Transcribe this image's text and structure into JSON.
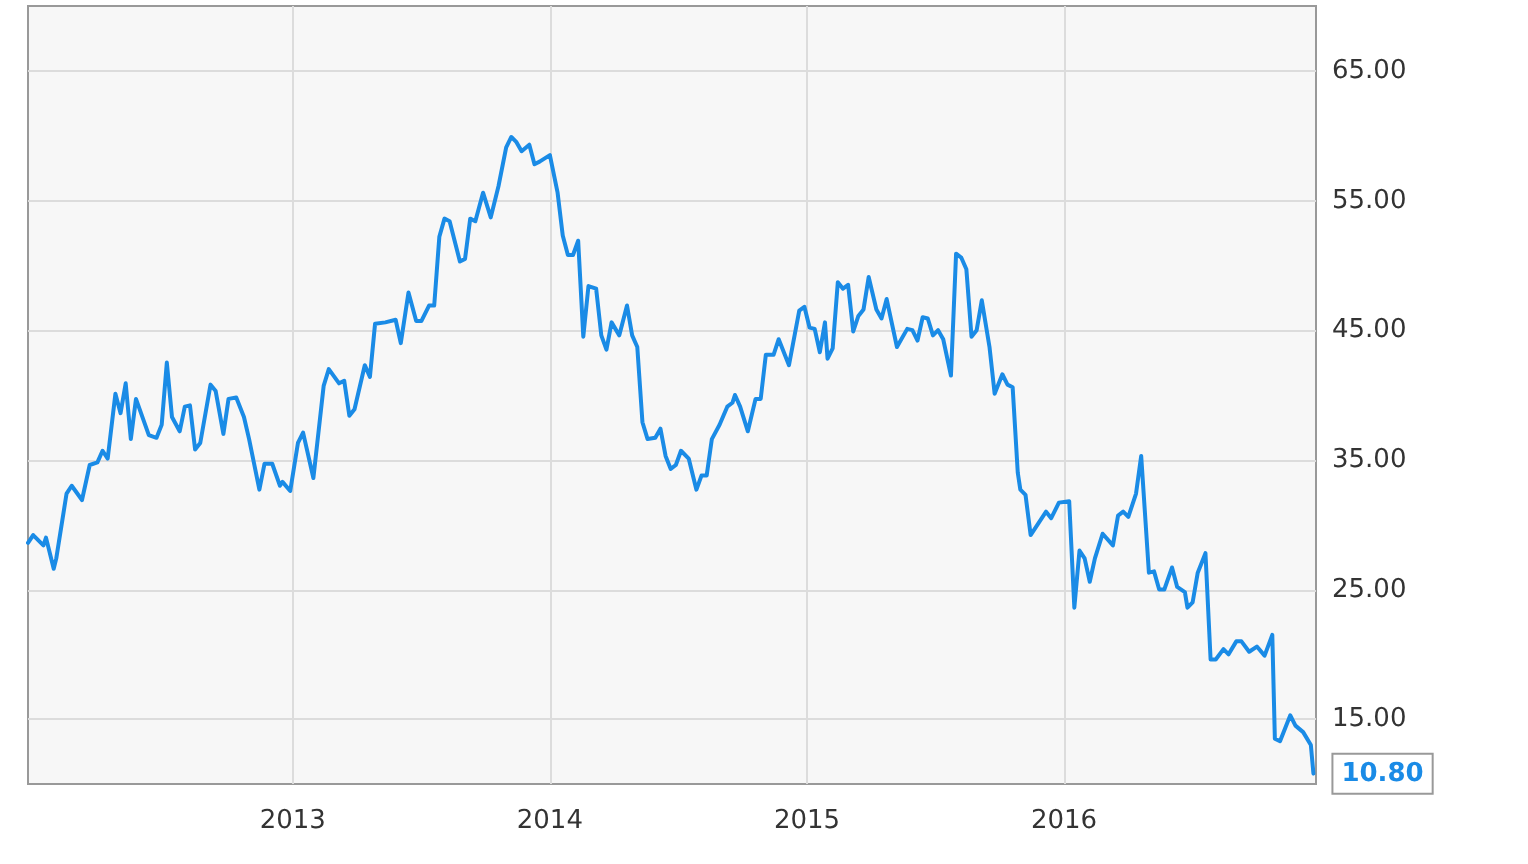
{
  "chart_data": {
    "type": "line",
    "grid": true,
    "marker": "none",
    "line_style": "solid",
    "xlim": [
      2011.97,
      2016.98
    ],
    "xticks": [
      2013,
      2014,
      2015,
      2016
    ],
    "ylim": [
      10,
      70
    ],
    "yticks": [
      {
        "value": 15,
        "label": "15.00"
      },
      {
        "value": 25,
        "label": "25.00"
      },
      {
        "value": 35,
        "label": "35.00"
      },
      {
        "value": 45,
        "label": "45.00"
      },
      {
        "value": 55,
        "label": "55.00"
      },
      {
        "value": 65,
        "label": "65.00"
      }
    ],
    "annotations": [
      {
        "text": "10.80",
        "x": 2016.97,
        "y": 10.8
      }
    ],
    "series": [
      {
        "color": "#1a8be6",
        "x": [
          2011.97,
          2011.99,
          2012.03,
          2012.04,
          2012.07,
          2012.08,
          2012.12,
          2012.14,
          2012.18,
          2012.21,
          2012.24,
          2012.26,
          2012.28,
          2012.31,
          2012.33,
          2012.35,
          2012.37,
          2012.39,
          2012.44,
          2012.47,
          2012.49,
          2012.51,
          2012.53,
          2012.56,
          2012.58,
          2012.6,
          2012.62,
          2012.64,
          2012.68,
          2012.7,
          2012.73,
          2012.75,
          2012.78,
          2012.81,
          2012.83,
          2012.87,
          2012.89,
          2012.92,
          2012.95,
          2012.96,
          2012.99,
          2013.02,
          2013.04,
          2013.08,
          2013.12,
          2013.14,
          2013.18,
          2013.2,
          2013.22,
          2013.24,
          2013.28,
          2013.3,
          2013.32,
          2013.36,
          2013.4,
          2013.42,
          2013.45,
          2013.48,
          2013.5,
          2013.53,
          2013.55,
          2013.57,
          2013.59,
          2013.61,
          2013.65,
          2013.67,
          2013.69,
          2013.71,
          2013.74,
          2013.77,
          2013.8,
          2013.83,
          2013.85,
          2013.87,
          2013.89,
          2013.92,
          2013.94,
          2013.96,
          2014.0,
          2014.03,
          2014.05,
          2014.07,
          2014.09,
          2014.11,
          2014.13,
          2014.15,
          2014.18,
          2014.2,
          2014.22,
          2014.24,
          2014.27,
          2014.3,
          2014.32,
          2014.34,
          2014.36,
          2014.38,
          2014.41,
          2014.43,
          2014.45,
          2014.47,
          2014.49,
          2014.51,
          2014.54,
          2014.57,
          2014.59,
          2014.61,
          2014.63,
          2014.66,
          2014.69,
          2014.71,
          2014.72,
          2014.74,
          2014.77,
          2014.8,
          2014.82,
          2014.84,
          2014.87,
          2014.89,
          2014.93,
          2014.97,
          2014.99,
          2015.01,
          2015.03,
          2015.05,
          2015.07,
          2015.08,
          2015.1,
          2015.12,
          2015.14,
          2015.16,
          2015.18,
          2015.2,
          2015.22,
          2015.24,
          2015.27,
          2015.29,
          2015.31,
          2015.35,
          2015.39,
          2015.41,
          2015.43,
          2015.45,
          2015.47,
          2015.49,
          2015.51,
          2015.53,
          2015.56,
          2015.58,
          2015.6,
          2015.62,
          2015.64,
          2015.66,
          2015.68,
          2015.71,
          2015.73,
          2015.76,
          2015.78,
          2015.8,
          2015.82,
          2015.83,
          2015.85,
          2015.87,
          2015.9,
          2015.93,
          2015.95,
          2015.98,
          2016.02,
          2016.04,
          2016.06,
          2016.08,
          2016.1,
          2016.12,
          2016.15,
          2016.19,
          2016.21,
          2016.23,
          2016.25,
          2016.28,
          2016.3,
          2016.33,
          2016.35,
          2016.37,
          2016.39,
          2016.42,
          2016.44,
          2016.47,
          2016.48,
          2016.5,
          2016.52,
          2016.55,
          2016.57,
          2016.59,
          2016.62,
          2016.64,
          2016.67,
          2016.69,
          2016.72,
          2016.75,
          2016.78,
          2016.81,
          2016.82,
          2016.84,
          2016.88,
          2016.9,
          2016.93,
          2016.96,
          2016.97
        ],
        "values": [
          28.6,
          29.2,
          28.4,
          29.0,
          26.6,
          27.4,
          32.4,
          33.0,
          31.9,
          34.6,
          34.8,
          35.7,
          35.1,
          40.1,
          38.6,
          40.9,
          36.6,
          39.7,
          36.9,
          36.7,
          37.7,
          42.5,
          38.3,
          37.2,
          39.1,
          39.2,
          35.8,
          36.3,
          40.8,
          40.3,
          37.0,
          39.7,
          39.8,
          38.3,
          36.6,
          32.7,
          34.7,
          34.7,
          33.0,
          33.3,
          32.6,
          36.3,
          37.1,
          33.6,
          40.7,
          42.0,
          40.9,
          41.1,
          38.4,
          38.9,
          42.3,
          41.4,
          45.5,
          45.6,
          45.8,
          44.0,
          47.9,
          45.7,
          45.7,
          46.9,
          46.9,
          52.2,
          53.6,
          53.4,
          50.3,
          50.5,
          53.6,
          53.4,
          55.6,
          53.7,
          56.1,
          59.1,
          59.9,
          59.5,
          58.8,
          59.3,
          57.8,
          58.0,
          58.5,
          55.6,
          52.3,
          50.8,
          50.8,
          51.9,
          44.5,
          48.4,
          48.2,
          44.6,
          43.5,
          45.6,
          44.6,
          46.9,
          44.6,
          43.7,
          37.9,
          36.6,
          36.7,
          37.4,
          35.3,
          34.3,
          34.6,
          35.7,
          35.1,
          32.7,
          33.8,
          33.8,
          36.6,
          37.7,
          39.1,
          39.4,
          40.0,
          39.1,
          37.2,
          39.7,
          39.7,
          43.1,
          43.1,
          44.3,
          42.3,
          46.5,
          46.8,
          45.2,
          45.1,
          43.3,
          45.6,
          42.8,
          43.6,
          48.7,
          48.2,
          48.5,
          44.9,
          46.1,
          46.6,
          49.1,
          46.6,
          45.9,
          47.4,
          43.7,
          45.1,
          45.0,
          44.2,
          46.0,
          45.9,
          44.6,
          45.0,
          44.3,
          41.5,
          50.9,
          50.6,
          49.7,
          44.5,
          45.0,
          47.3,
          43.7,
          40.1,
          41.6,
          40.8,
          40.6,
          34.0,
          32.7,
          32.3,
          29.2,
          30.1,
          31.0,
          30.5,
          31.7,
          31.8,
          23.6,
          28.0,
          27.4,
          25.6,
          27.4,
          29.3,
          28.4,
          30.7,
          31.0,
          30.6,
          32.4,
          35.3,
          26.3,
          26.4,
          25.0,
          25.0,
          26.7,
          25.2,
          24.8,
          23.6,
          24.0,
          26.3,
          27.8,
          19.6,
          19.6,
          20.4,
          20.0,
          21.0,
          21.0,
          20.2,
          20.6,
          19.9,
          21.5,
          13.5,
          13.3,
          15.3,
          14.5,
          14.0,
          13.0,
          10.8
        ]
      }
    ]
  }
}
